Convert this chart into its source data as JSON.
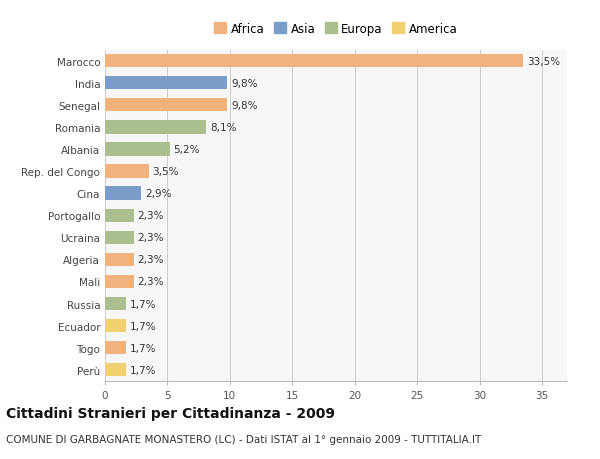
{
  "categories": [
    "Marocco",
    "India",
    "Senegal",
    "Romania",
    "Albania",
    "Rep. del Congo",
    "Cina",
    "Portogallo",
    "Ucraina",
    "Algeria",
    "Mali",
    "Russia",
    "Ecuador",
    "Togo",
    "Perù"
  ],
  "values": [
    33.5,
    9.8,
    9.8,
    8.1,
    5.2,
    3.5,
    2.9,
    2.3,
    2.3,
    2.3,
    2.3,
    1.7,
    1.7,
    1.7,
    1.7
  ],
  "continents": [
    "Africa",
    "Asia",
    "Africa",
    "Europa",
    "Europa",
    "Africa",
    "Asia",
    "Europa",
    "Europa",
    "Africa",
    "Africa",
    "Europa",
    "America",
    "Africa",
    "America"
  ],
  "labels": [
    "33,5%",
    "9,8%",
    "9,8%",
    "8,1%",
    "5,2%",
    "3,5%",
    "2,9%",
    "2,3%",
    "2,3%",
    "2,3%",
    "2,3%",
    "1,7%",
    "1,7%",
    "1,7%",
    "1,7%"
  ],
  "colors": {
    "Africa": "#F2B27E",
    "Asia": "#7B9DC9",
    "Europa": "#ABBE90",
    "America": "#F0D070"
  },
  "legend_order": [
    "Africa",
    "Asia",
    "Europa",
    "America"
  ],
  "title": "Cittadini Stranieri per Cittadinanza - 2009",
  "subtitle": "COMUNE DI GARBAGNATE MONASTERO (LC) - Dati ISTAT al 1° gennaio 2009 - TUTTITALIA.IT",
  "xlim": [
    0,
    37
  ],
  "xticks": [
    0,
    5,
    10,
    15,
    20,
    25,
    30,
    35
  ],
  "bg_color": "#FFFFFF",
  "plot_bg_color": "#F7F7F7",
  "bar_height": 0.6,
  "title_fontsize": 10,
  "subtitle_fontsize": 7.5,
  "label_fontsize": 7.5,
  "tick_fontsize": 7.5,
  "legend_fontsize": 8.5
}
